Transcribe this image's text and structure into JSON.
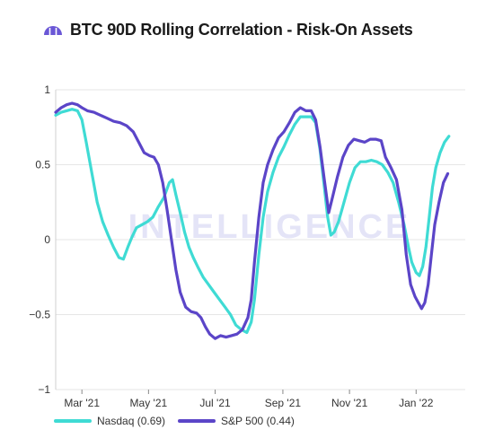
{
  "header": {
    "title": "BTC 90D Rolling Correlation - Risk-On Assets",
    "logo_icon": "intotheblock-logo-icon"
  },
  "watermark": "INTELLIGENCE",
  "colors": {
    "nasdaq": "#3fdbd4",
    "sp500": "#5b45c8",
    "grid": "#e6e6e6",
    "logo": "#6a57d6"
  },
  "chart_data": {
    "type": "line",
    "title": "BTC 90D Rolling Correlation - Risk-On Assets",
    "ylim": [
      -1,
      1
    ],
    "xlim": [
      "2021-02-05",
      "2022-02-15"
    ],
    "y_ticks": [
      "1",
      "0.5",
      "0",
      "−0.5",
      "−1"
    ],
    "y_tick_values": [
      1,
      0.5,
      0,
      -0.5,
      -1
    ],
    "x_ticks": [
      "Mar '21",
      "May '21",
      "Jul '21",
      "Sep '21",
      "Nov '21",
      "Jan '22"
    ],
    "x_tick_dates": [
      "2021-03-01",
      "2021-05-01",
      "2021-07-01",
      "2021-09-01",
      "2021-11-01",
      "2022-01-01"
    ],
    "grid": true,
    "legend_position": "bottom-left",
    "series": [
      {
        "name": "Nasdaq (0.69)",
        "color": "#3fdbd4",
        "points": [
          [
            "2021-02-05",
            0.83
          ],
          [
            "2021-02-10",
            0.85
          ],
          [
            "2021-02-15",
            0.86
          ],
          [
            "2021-02-20",
            0.87
          ],
          [
            "2021-02-25",
            0.86
          ],
          [
            "2021-03-01",
            0.8
          ],
          [
            "2021-03-05",
            0.65
          ],
          [
            "2021-03-10",
            0.45
          ],
          [
            "2021-03-15",
            0.25
          ],
          [
            "2021-03-20",
            0.12
          ],
          [
            "2021-03-25",
            0.03
          ],
          [
            "2021-03-30",
            -0.05
          ],
          [
            "2021-04-04",
            -0.12
          ],
          [
            "2021-04-08",
            -0.13
          ],
          [
            "2021-04-12",
            -0.05
          ],
          [
            "2021-04-16",
            0.02
          ],
          [
            "2021-04-20",
            0.08
          ],
          [
            "2021-04-25",
            0.1
          ],
          [
            "2021-04-30",
            0.12
          ],
          [
            "2021-05-05",
            0.15
          ],
          [
            "2021-05-10",
            0.22
          ],
          [
            "2021-05-15",
            0.28
          ],
          [
            "2021-05-20",
            0.38
          ],
          [
            "2021-05-23",
            0.4
          ],
          [
            "2021-05-26",
            0.3
          ],
          [
            "2021-05-30",
            0.18
          ],
          [
            "2021-06-03",
            0.05
          ],
          [
            "2021-06-07",
            -0.05
          ],
          [
            "2021-06-11",
            -0.12
          ],
          [
            "2021-06-15",
            -0.18
          ],
          [
            "2021-06-20",
            -0.25
          ],
          [
            "2021-06-25",
            -0.3
          ],
          [
            "2021-06-30",
            -0.35
          ],
          [
            "2021-07-05",
            -0.4
          ],
          [
            "2021-07-10",
            -0.45
          ],
          [
            "2021-07-15",
            -0.5
          ],
          [
            "2021-07-20",
            -0.57
          ],
          [
            "2021-07-25",
            -0.6
          ],
          [
            "2021-07-30",
            -0.62
          ],
          [
            "2021-08-03",
            -0.55
          ],
          [
            "2021-08-06",
            -0.4
          ],
          [
            "2021-08-10",
            -0.1
          ],
          [
            "2021-08-14",
            0.15
          ],
          [
            "2021-08-18",
            0.32
          ],
          [
            "2021-08-23",
            0.45
          ],
          [
            "2021-08-28",
            0.55
          ],
          [
            "2021-09-02",
            0.62
          ],
          [
            "2021-09-07",
            0.7
          ],
          [
            "2021-09-12",
            0.77
          ],
          [
            "2021-09-17",
            0.82
          ],
          [
            "2021-09-22",
            0.82
          ],
          [
            "2021-09-27",
            0.82
          ],
          [
            "2021-10-01",
            0.78
          ],
          [
            "2021-10-05",
            0.6
          ],
          [
            "2021-10-09",
            0.35
          ],
          [
            "2021-10-12",
            0.15
          ],
          [
            "2021-10-15",
            0.03
          ],
          [
            "2021-10-18",
            0.05
          ],
          [
            "2021-10-22",
            0.12
          ],
          [
            "2021-10-27",
            0.25
          ],
          [
            "2021-11-01",
            0.38
          ],
          [
            "2021-11-06",
            0.48
          ],
          [
            "2021-11-11",
            0.52
          ],
          [
            "2021-11-16",
            0.52
          ],
          [
            "2021-11-21",
            0.53
          ],
          [
            "2021-11-26",
            0.52
          ],
          [
            "2021-12-01",
            0.5
          ],
          [
            "2021-12-06",
            0.45
          ],
          [
            "2021-12-11",
            0.38
          ],
          [
            "2021-12-16",
            0.25
          ],
          [
            "2021-12-21",
            0.1
          ],
          [
            "2021-12-25",
            -0.05
          ],
          [
            "2021-12-28",
            -0.15
          ],
          [
            "2022-01-01",
            -0.22
          ],
          [
            "2022-01-04",
            -0.24
          ],
          [
            "2022-01-07",
            -0.18
          ],
          [
            "2022-01-10",
            -0.05
          ],
          [
            "2022-01-13",
            0.15
          ],
          [
            "2022-01-16",
            0.35
          ],
          [
            "2022-01-19",
            0.48
          ],
          [
            "2022-01-23",
            0.58
          ],
          [
            "2022-01-27",
            0.65
          ],
          [
            "2022-01-31",
            0.69
          ]
        ]
      },
      {
        "name": "S&P 500 (0.44)",
        "color": "#5b45c8",
        "points": [
          [
            "2021-02-05",
            0.85
          ],
          [
            "2021-02-10",
            0.88
          ],
          [
            "2021-02-15",
            0.9
          ],
          [
            "2021-02-20",
            0.91
          ],
          [
            "2021-02-25",
            0.9
          ],
          [
            "2021-03-01",
            0.88
          ],
          [
            "2021-03-06",
            0.86
          ],
          [
            "2021-03-12",
            0.85
          ],
          [
            "2021-03-18",
            0.83
          ],
          [
            "2021-03-24",
            0.81
          ],
          [
            "2021-03-30",
            0.79
          ],
          [
            "2021-04-05",
            0.78
          ],
          [
            "2021-04-11",
            0.76
          ],
          [
            "2021-04-17",
            0.72
          ],
          [
            "2021-04-22",
            0.65
          ],
          [
            "2021-04-27",
            0.58
          ],
          [
            "2021-05-02",
            0.56
          ],
          [
            "2021-05-06",
            0.55
          ],
          [
            "2021-05-10",
            0.5
          ],
          [
            "2021-05-14",
            0.38
          ],
          [
            "2021-05-18",
            0.2
          ],
          [
            "2021-05-22",
            0.0
          ],
          [
            "2021-05-26",
            -0.2
          ],
          [
            "2021-05-30",
            -0.35
          ],
          [
            "2021-06-04",
            -0.45
          ],
          [
            "2021-06-09",
            -0.48
          ],
          [
            "2021-06-14",
            -0.49
          ],
          [
            "2021-06-18",
            -0.52
          ],
          [
            "2021-06-22",
            -0.58
          ],
          [
            "2021-06-26",
            -0.63
          ],
          [
            "2021-07-01",
            -0.66
          ],
          [
            "2021-07-06",
            -0.64
          ],
          [
            "2021-07-11",
            -0.65
          ],
          [
            "2021-07-16",
            -0.64
          ],
          [
            "2021-07-21",
            -0.63
          ],
          [
            "2021-07-26",
            -0.6
          ],
          [
            "2021-07-31",
            -0.52
          ],
          [
            "2021-08-03",
            -0.4
          ],
          [
            "2021-08-06",
            -0.15
          ],
          [
            "2021-08-10",
            0.15
          ],
          [
            "2021-08-14",
            0.38
          ],
          [
            "2021-08-18",
            0.5
          ],
          [
            "2021-08-23",
            0.6
          ],
          [
            "2021-08-28",
            0.68
          ],
          [
            "2021-09-02",
            0.72
          ],
          [
            "2021-09-07",
            0.78
          ],
          [
            "2021-09-12",
            0.85
          ],
          [
            "2021-09-17",
            0.88
          ],
          [
            "2021-09-22",
            0.86
          ],
          [
            "2021-09-27",
            0.86
          ],
          [
            "2021-10-01",
            0.8
          ],
          [
            "2021-10-05",
            0.62
          ],
          [
            "2021-10-09",
            0.4
          ],
          [
            "2021-10-13",
            0.18
          ],
          [
            "2021-10-17",
            0.3
          ],
          [
            "2021-10-21",
            0.42
          ],
          [
            "2021-10-26",
            0.55
          ],
          [
            "2021-10-31",
            0.63
          ],
          [
            "2021-11-05",
            0.67
          ],
          [
            "2021-11-10",
            0.66
          ],
          [
            "2021-11-15",
            0.65
          ],
          [
            "2021-11-20",
            0.67
          ],
          [
            "2021-11-25",
            0.67
          ],
          [
            "2021-11-30",
            0.66
          ],
          [
            "2021-12-04",
            0.55
          ],
          [
            "2021-12-09",
            0.48
          ],
          [
            "2021-12-14",
            0.4
          ],
          [
            "2021-12-19",
            0.2
          ],
          [
            "2021-12-23",
            -0.1
          ],
          [
            "2021-12-27",
            -0.3
          ],
          [
            "2021-12-31",
            -0.38
          ],
          [
            "2022-01-03",
            -0.42
          ],
          [
            "2022-01-06",
            -0.46
          ],
          [
            "2022-01-09",
            -0.42
          ],
          [
            "2022-01-12",
            -0.3
          ],
          [
            "2022-01-15",
            -0.1
          ],
          [
            "2022-01-18",
            0.1
          ],
          [
            "2022-01-22",
            0.25
          ],
          [
            "2022-01-26",
            0.38
          ],
          [
            "2022-01-30",
            0.44
          ]
        ]
      }
    ]
  },
  "legend": [
    {
      "label": "Nasdaq (0.69)",
      "color": "#3fdbd4"
    },
    {
      "label": "S&P 500 (0.44)",
      "color": "#5b45c8"
    }
  ]
}
